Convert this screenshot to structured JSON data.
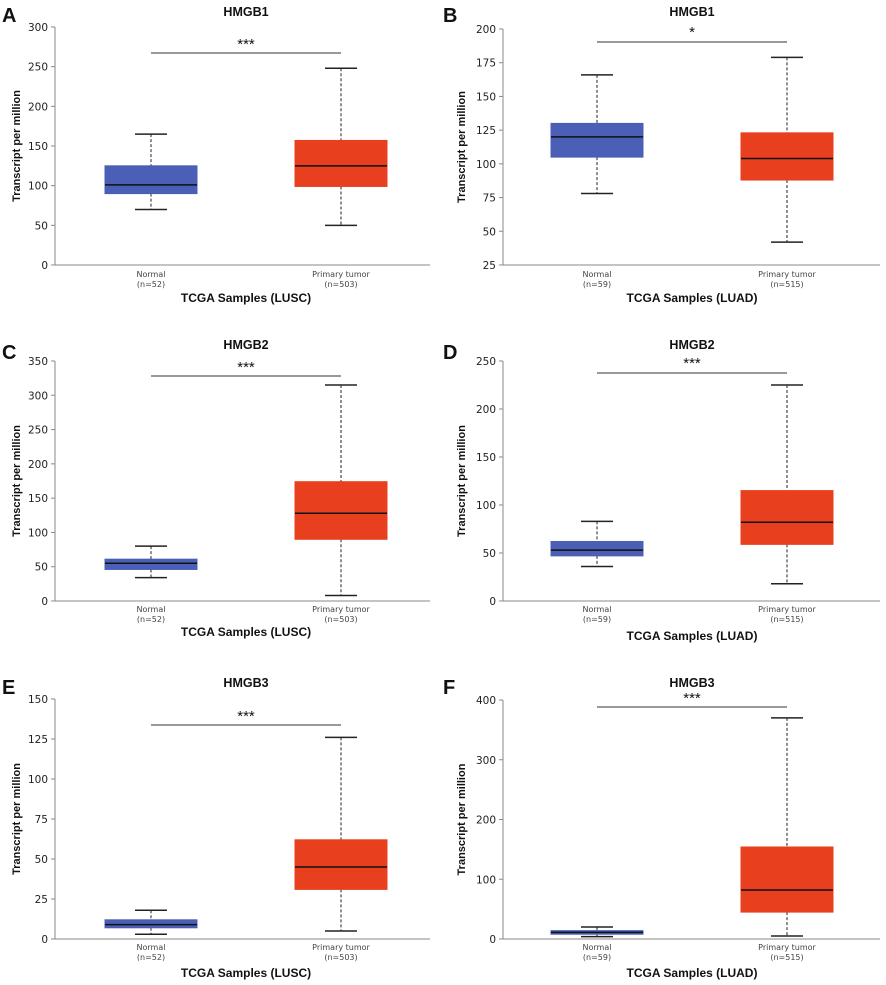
{
  "chart_data": [
    {
      "panel": "A",
      "type": "box",
      "title": "HMGB1",
      "xlabel": "TCGA Samples (LUSC)",
      "ylabel": "Transcript per million",
      "ylim": [
        0,
        300
      ],
      "yticks": [
        0,
        50,
        100,
        150,
        200,
        250,
        300
      ],
      "significance": "***",
      "boxes": [
        {
          "label": "Normal",
          "n": "(n=52)",
          "color": "#4a5fb5",
          "whisker_low": 70,
          "q1": 90,
          "median": 101,
          "q3": 125,
          "whisker_high": 165
        },
        {
          "label": "Primary tumor",
          "n": "(n=503)",
          "color": "#e8401f",
          "whisker_low": 50,
          "q1": 99,
          "median": 125,
          "q3": 157,
          "whisker_high": 248
        }
      ]
    },
    {
      "panel": "B",
      "type": "box",
      "title": "HMGB1",
      "xlabel": "TCGA Samples (LUAD)",
      "ylabel": "Transcript per million",
      "ylim": [
        25,
        200
      ],
      "yticks": [
        25,
        50,
        75,
        100,
        125,
        150,
        175,
        200
      ],
      "significance": "*",
      "boxes": [
        {
          "label": "Normal",
          "n": "(n=59)",
          "color": "#4a5fb5",
          "whisker_low": 78,
          "q1": 105,
          "median": 120,
          "q3": 130,
          "whisker_high": 166
        },
        {
          "label": "Primary tumor",
          "n": "(n=515)",
          "color": "#e8401f",
          "whisker_low": 42,
          "q1": 88,
          "median": 104,
          "q3": 123,
          "whisker_high": 179
        }
      ]
    },
    {
      "panel": "C",
      "type": "box",
      "title": "HMGB2",
      "xlabel": "TCGA Samples (LUSC)",
      "ylabel": "Transcript per million",
      "ylim": [
        0,
        350
      ],
      "yticks": [
        0,
        50,
        100,
        150,
        200,
        250,
        300,
        350
      ],
      "significance": "***",
      "boxes": [
        {
          "label": "Normal",
          "n": "(n=52)",
          "color": "#4a5fb5",
          "whisker_low": 34,
          "q1": 46,
          "median": 55,
          "q3": 61,
          "whisker_high": 80
        },
        {
          "label": "Primary tumor",
          "n": "(n=503)",
          "color": "#e8401f",
          "whisker_low": 8,
          "q1": 90,
          "median": 128,
          "q3": 174,
          "whisker_high": 315
        }
      ]
    },
    {
      "panel": "D",
      "type": "box",
      "title": "HMGB2",
      "xlabel": "TCGA Samples (LUAD)",
      "ylabel": "Transcript per million",
      "ylim": [
        0,
        250
      ],
      "yticks": [
        0,
        50,
        100,
        150,
        200,
        250
      ],
      "significance": "***",
      "boxes": [
        {
          "label": "Normal",
          "n": "(n=59)",
          "color": "#4a5fb5",
          "whisker_low": 36,
          "q1": 47,
          "median": 53,
          "q3": 62,
          "whisker_high": 83
        },
        {
          "label": "Primary tumor",
          "n": "(n=515)",
          "color": "#e8401f",
          "whisker_low": 18,
          "q1": 59,
          "median": 82,
          "q3": 115,
          "whisker_high": 225
        }
      ]
    },
    {
      "panel": "E",
      "type": "box",
      "title": "HMGB3",
      "xlabel": "TCGA Samples (LUSC)",
      "ylabel": "Transcript per million",
      "ylim": [
        0,
        150
      ],
      "yticks": [
        0,
        25,
        50,
        75,
        100,
        125,
        150
      ],
      "significance": "***",
      "boxes": [
        {
          "label": "Normal",
          "n": "(n=52)",
          "color": "#4a5fb5",
          "whisker_low": 3,
          "q1": 7,
          "median": 9,
          "q3": 12,
          "whisker_high": 18
        },
        {
          "label": "Primary tumor",
          "n": "(n=503)",
          "color": "#e8401f",
          "whisker_low": 5,
          "q1": 31,
          "median": 45,
          "q3": 62,
          "whisker_high": 126
        }
      ]
    },
    {
      "panel": "F",
      "type": "box",
      "title": "HMGB3",
      "xlabel": "TCGA Samples (LUAD)",
      "ylabel": "Transcript per million",
      "ylim": [
        0,
        400
      ],
      "yticks": [
        0,
        100,
        200,
        300,
        400
      ],
      "significance": "***",
      "boxes": [
        {
          "label": "Normal",
          "n": "(n=59)",
          "color": "#4a5fb5",
          "whisker_low": 4,
          "q1": 8,
          "median": 11,
          "q3": 14,
          "whisker_high": 20
        },
        {
          "label": "Primary tumor",
          "n": "(n=515)",
          "color": "#e8401f",
          "whisker_low": 5,
          "q1": 45,
          "median": 82,
          "q3": 154,
          "whisker_high": 370
        }
      ]
    }
  ]
}
